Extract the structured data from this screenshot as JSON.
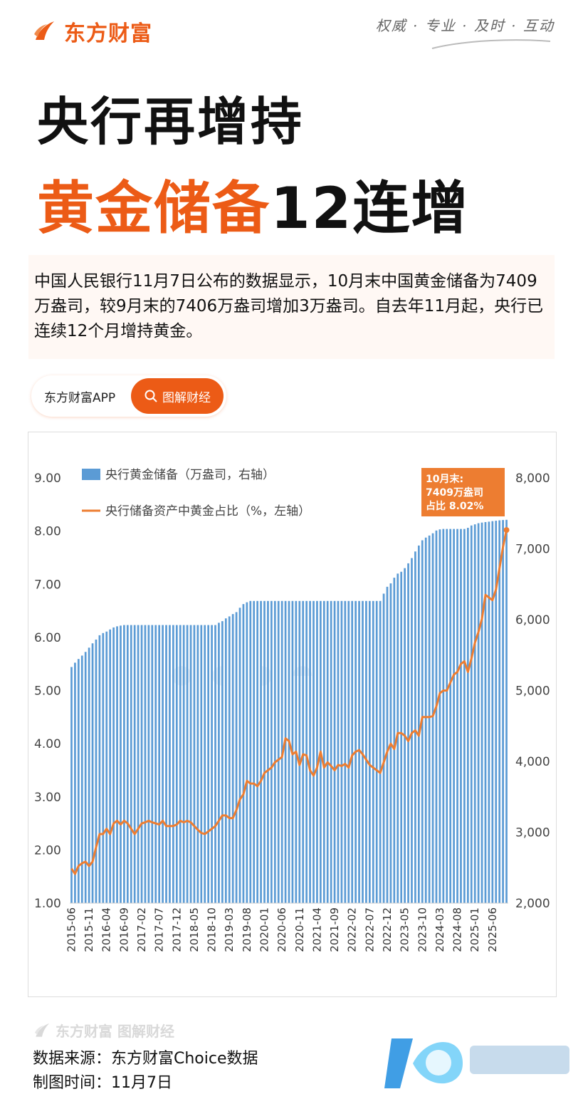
{
  "header": {
    "brand": "东方财富",
    "slogan": "权威 · 专业 · 及时 · 互动"
  },
  "title": {
    "line1": "央行再增持",
    "line2_highlight": "黄金储备",
    "line2_rest": "12连增"
  },
  "description": "中国人民银行11月7日公布的数据显示，10月末中国黄金储备为7409万盎司，较9月末的7406万盎司增加3万盎司。自去年11月起，央行已连续12个月增持黄金。",
  "pill": {
    "app": "东方财富APP",
    "button": "图解财经"
  },
  "colors": {
    "brand": "#ec5b16",
    "bar": "#5b9bd5",
    "line": "#ed7d31",
    "annotation_bg": "#ed7d31"
  },
  "chart_data": {
    "type": "bar+line",
    "title": "",
    "legend": {
      "placement": "top-left",
      "bar_label": "央行黄金储备（万盎司，右轴）",
      "line_label": "央行储备资产中黄金占比（%，左轴）"
    },
    "annotation": "10月末:\n7409万盎司\n占比 8.02%",
    "left_axis": {
      "min": 1.0,
      "max": 9.0,
      "ticks": [
        "1.00",
        "2.00",
        "3.00",
        "4.00",
        "5.00",
        "6.00",
        "7.00",
        "8.00",
        "9.00"
      ]
    },
    "right_axis": {
      "min": 2000,
      "max": 8000,
      "ticks": [
        "2,000",
        "3,000",
        "4,000",
        "5,000",
        "6,000",
        "7,000",
        "8,000"
      ]
    },
    "x_tick_labels": [
      "2015-06",
      "2015-11",
      "2016-04",
      "2016-09",
      "2017-02",
      "2017-07",
      "2017-12",
      "2018-05",
      "2018-10",
      "2019-03",
      "2019-08",
      "2020-01",
      "2020-06",
      "2020-11",
      "2021-04",
      "2021-09",
      "2022-02",
      "2022-07",
      "2022-12",
      "2023-05",
      "2023-10",
      "2024-03",
      "2024-08",
      "2025-01",
      "2025-06"
    ],
    "start_month": "2015-06",
    "gold_reserve_anchors": [
      [
        "2015-06",
        5332
      ],
      [
        "2015-07",
        5393
      ],
      [
        "2015-08",
        5445
      ],
      [
        "2015-09",
        5493
      ],
      [
        "2015-10",
        5545
      ],
      [
        "2015-11",
        5605
      ],
      [
        "2015-12",
        5666
      ],
      [
        "2016-01",
        5719
      ],
      [
        "2016-02",
        5780
      ],
      [
        "2016-03",
        5811
      ],
      [
        "2016-04",
        5832
      ],
      [
        "2016-05",
        5862
      ],
      [
        "2016-06",
        5890
      ],
      [
        "2016-07",
        5906
      ],
      [
        "2016-08",
        5916
      ],
      [
        "2016-09",
        5924
      ],
      [
        "2016-10",
        5924
      ],
      [
        "2018-11",
        5924
      ],
      [
        "2018-12",
        5956
      ],
      [
        "2019-01",
        5979
      ],
      [
        "2019-02",
        6018
      ],
      [
        "2019-03",
        6046
      ],
      [
        "2019-04",
        6079
      ],
      [
        "2019-05",
        6106
      ],
      [
        "2019-06",
        6168
      ],
      [
        "2019-07",
        6220
      ],
      [
        "2019-08",
        6245
      ],
      [
        "2019-09",
        6264
      ],
      [
        "2022-10",
        6264
      ],
      [
        "2022-11",
        6367
      ],
      [
        "2022-12",
        6464
      ],
      [
        "2023-01",
        6512
      ],
      [
        "2023-02",
        6592
      ],
      [
        "2023-03",
        6650
      ],
      [
        "2023-04",
        6676
      ],
      [
        "2023-05",
        6727
      ],
      [
        "2023-06",
        6795
      ],
      [
        "2023-07",
        6869
      ],
      [
        "2023-08",
        6962
      ],
      [
        "2023-09",
        7046
      ],
      [
        "2023-10",
        7120
      ],
      [
        "2023-11",
        7158
      ],
      [
        "2023-12",
        7187
      ],
      [
        "2024-01",
        7219
      ],
      [
        "2024-02",
        7258
      ],
      [
        "2024-03",
        7274
      ],
      [
        "2024-04",
        7280
      ],
      [
        "2024-10",
        7280
      ],
      [
        "2024-11",
        7296
      ],
      [
        "2024-12",
        7329
      ],
      [
        "2025-01",
        7345
      ],
      [
        "2025-02",
        7361
      ],
      [
        "2025-03",
        7370
      ],
      [
        "2025-04",
        7377
      ],
      [
        "2025-05",
        7383
      ],
      [
        "2025-06",
        7390
      ],
      [
        "2025-07",
        7396
      ],
      [
        "2025-08",
        7402
      ],
      [
        "2025-09",
        7406
      ],
      [
        "2025-10",
        7409
      ]
    ],
    "gold_share_anchors": [
      [
        "2015-06",
        1.65
      ],
      [
        "2015-07",
        1.55
      ],
      [
        "2015-08",
        1.7
      ],
      [
        "2015-09",
        1.75
      ],
      [
        "2015-10",
        1.78
      ],
      [
        "2015-11",
        1.7
      ],
      [
        "2015-12",
        1.78
      ],
      [
        "2016-01",
        2.05
      ],
      [
        "2016-02",
        2.3
      ],
      [
        "2016-03",
        2.3
      ],
      [
        "2016-04",
        2.4
      ],
      [
        "2016-05",
        2.3
      ],
      [
        "2016-06",
        2.5
      ],
      [
        "2016-07",
        2.55
      ],
      [
        "2016-08",
        2.48
      ],
      [
        "2016-09",
        2.55
      ],
      [
        "2016-10",
        2.5
      ],
      [
        "2016-11",
        2.4
      ],
      [
        "2016-12",
        2.3
      ],
      [
        "2017-01",
        2.4
      ],
      [
        "2017-02",
        2.5
      ],
      [
        "2017-03",
        2.52
      ],
      [
        "2017-04",
        2.55
      ],
      [
        "2017-05",
        2.52
      ],
      [
        "2017-06",
        2.5
      ],
      [
        "2017-07",
        2.48
      ],
      [
        "2017-08",
        2.55
      ],
      [
        "2017-09",
        2.45
      ],
      [
        "2017-10",
        2.45
      ],
      [
        "2017-11",
        2.45
      ],
      [
        "2017-12",
        2.48
      ],
      [
        "2018-01",
        2.55
      ],
      [
        "2018-02",
        2.52
      ],
      [
        "2018-03",
        2.55
      ],
      [
        "2018-04",
        2.52
      ],
      [
        "2018-05",
        2.45
      ],
      [
        "2018-06",
        2.38
      ],
      [
        "2018-07",
        2.32
      ],
      [
        "2018-08",
        2.3
      ],
      [
        "2018-09",
        2.35
      ],
      [
        "2018-10",
        2.4
      ],
      [
        "2018-11",
        2.45
      ],
      [
        "2018-12",
        2.55
      ],
      [
        "2019-01",
        2.65
      ],
      [
        "2019-02",
        2.65
      ],
      [
        "2019-03",
        2.6
      ],
      [
        "2019-04",
        2.6
      ],
      [
        "2019-05",
        2.75
      ],
      [
        "2019-06",
        2.95
      ],
      [
        "2019-07",
        3.05
      ],
      [
        "2019-08",
        3.3
      ],
      [
        "2019-09",
        3.25
      ],
      [
        "2019-10",
        3.25
      ],
      [
        "2019-11",
        3.2
      ],
      [
        "2019-12",
        3.3
      ],
      [
        "2020-01",
        3.45
      ],
      [
        "2020-02",
        3.5
      ],
      [
        "2020-03",
        3.55
      ],
      [
        "2020-04",
        3.65
      ],
      [
        "2020-05",
        3.7
      ],
      [
        "2020-06",
        3.75
      ],
      [
        "2020-07",
        4.1
      ],
      [
        "2020-08",
        4.05
      ],
      [
        "2020-09",
        3.8
      ],
      [
        "2020-10",
        3.85
      ],
      [
        "2020-11",
        3.6
      ],
      [
        "2020-12",
        3.8
      ],
      [
        "2021-01",
        3.78
      ],
      [
        "2021-02",
        3.5
      ],
      [
        "2021-03",
        3.4
      ],
      [
        "2021-04",
        3.55
      ],
      [
        "2021-05",
        3.85
      ],
      [
        "2021-06",
        3.55
      ],
      [
        "2021-07",
        3.65
      ],
      [
        "2021-08",
        3.58
      ],
      [
        "2021-09",
        3.5
      ],
      [
        "2021-10",
        3.6
      ],
      [
        "2021-11",
        3.58
      ],
      [
        "2021-12",
        3.62
      ],
      [
        "2022-01",
        3.55
      ],
      [
        "2022-02",
        3.78
      ],
      [
        "2022-03",
        3.85
      ],
      [
        "2022-04",
        3.88
      ],
      [
        "2022-05",
        3.8
      ],
      [
        "2022-06",
        3.7
      ],
      [
        "2022-07",
        3.6
      ],
      [
        "2022-08",
        3.55
      ],
      [
        "2022-09",
        3.5
      ],
      [
        "2022-10",
        3.45
      ],
      [
        "2022-11",
        3.65
      ],
      [
        "2022-12",
        3.85
      ],
      [
        "2023-01",
        4.0
      ],
      [
        "2023-02",
        3.9
      ],
      [
        "2023-03",
        4.2
      ],
      [
        "2023-04",
        4.2
      ],
      [
        "2023-05",
        4.15
      ],
      [
        "2023-06",
        4.05
      ],
      [
        "2023-07",
        4.2
      ],
      [
        "2023-08",
        4.25
      ],
      [
        "2023-09",
        4.15
      ],
      [
        "2023-10",
        4.5
      ],
      [
        "2023-11",
        4.5
      ],
      [
        "2023-12",
        4.5
      ],
      [
        "2024-01",
        4.52
      ],
      [
        "2024-02",
        4.7
      ],
      [
        "2024-03",
        4.95
      ],
      [
        "2024-04",
        5.0
      ],
      [
        "2024-05",
        5.0
      ],
      [
        "2024-06",
        5.15
      ],
      [
        "2024-07",
        5.3
      ],
      [
        "2024-08",
        5.35
      ],
      [
        "2024-09",
        5.5
      ],
      [
        "2024-10",
        5.55
      ],
      [
        "2024-11",
        5.35
      ],
      [
        "2024-12",
        5.6
      ],
      [
        "2025-01",
        5.9
      ],
      [
        "2025-02",
        6.1
      ],
      [
        "2025-03",
        6.35
      ],
      [
        "2025-04",
        6.8
      ],
      [
        "2025-05",
        6.75
      ],
      [
        "2025-06",
        6.7
      ],
      [
        "2025-07",
        6.9
      ],
      [
        "2025-08",
        7.3
      ],
      [
        "2025-09",
        7.7
      ],
      [
        "2025-10",
        8.02
      ]
    ]
  },
  "footer": {
    "logo_text": "东方财富 图解财经",
    "source": "数据来源：东方财富Choice数据",
    "time": "制图时间：11月7日"
  }
}
